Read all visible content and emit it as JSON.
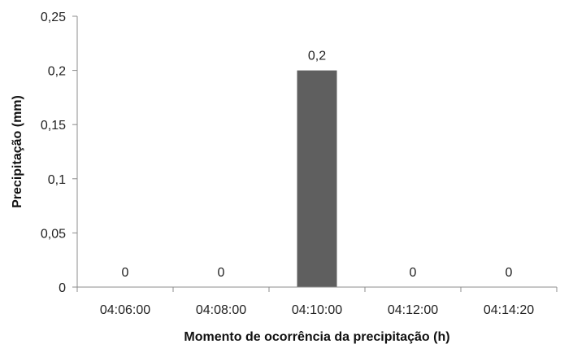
{
  "chart_data": {
    "type": "bar",
    "categories": [
      "04:06:00",
      "04:08:00",
      "04:10:00",
      "04:12:00",
      "04:14:20"
    ],
    "values": [
      0,
      0,
      0.2,
      0,
      0
    ],
    "value_labels": [
      "0",
      "0",
      "0,2",
      "0",
      "0"
    ],
    "ylim": [
      0,
      0.25
    ],
    "yticks": [
      0,
      0.05,
      0.1,
      0.15,
      0.2,
      0.25
    ],
    "ytick_labels": [
      "0",
      "0,05",
      "0,1",
      "0,15",
      "0,2",
      "0,25"
    ],
    "xlabel": "Momento de ocorrência da precipitação (h)",
    "ylabel": "Precipitação (mm)",
    "title": "",
    "grid": false,
    "legend": "none",
    "bar_color": "#5f5f5f",
    "axis_color": "#8c8c8c"
  }
}
